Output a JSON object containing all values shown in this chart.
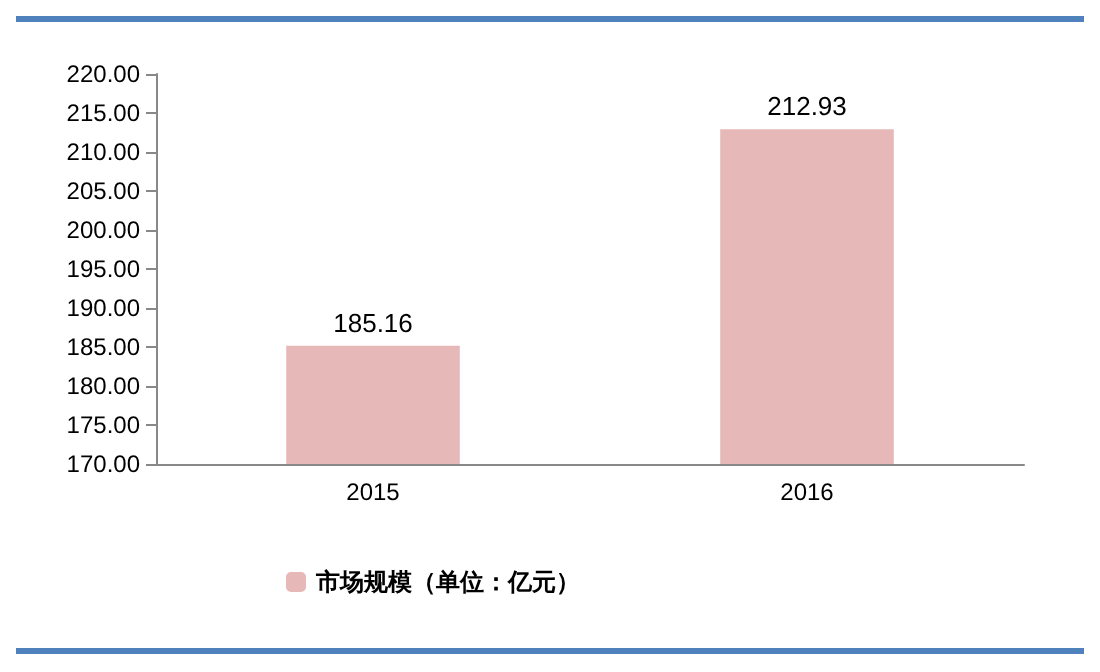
{
  "chart_data": {
    "type": "bar",
    "categories": [
      "2015",
      "2016"
    ],
    "series": [
      {
        "name": "市场规模（单位：亿元）",
        "color": "#e6b9b8",
        "values": [
          185.16,
          212.93
        ]
      }
    ],
    "ylim": [
      170,
      220
    ],
    "yticks": [
      {
        "value": 170,
        "label": "170.00"
      },
      {
        "value": 175,
        "label": "175.00"
      },
      {
        "value": 180,
        "label": "180.00"
      },
      {
        "value": 185,
        "label": "185.00"
      },
      {
        "value": 190,
        "label": "190.00"
      },
      {
        "value": 195,
        "label": "195.00"
      },
      {
        "value": 200,
        "label": "200.00"
      },
      {
        "value": 205,
        "label": "205.00"
      },
      {
        "value": 210,
        "label": "210.00"
      },
      {
        "value": 215,
        "label": "215.00"
      },
      {
        "value": 220,
        "label": "220.00"
      }
    ],
    "data_labels": true,
    "legend": "bottom left",
    "grid": false
  }
}
